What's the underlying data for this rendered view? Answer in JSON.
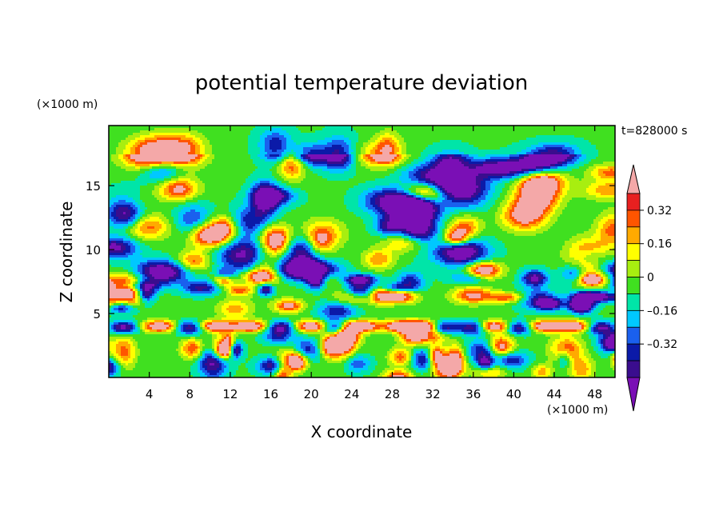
{
  "chart_data": {
    "type": "heatmap",
    "title": "potential temperature deviation",
    "xlabel": "X coordinate",
    "ylabel": "Z coordinate",
    "x_unit": "(×1000 m)",
    "y_unit": "(×1000 m)",
    "time_label": "t=828000 s",
    "xlim": [
      0,
      50
    ],
    "ylim": [
      0,
      19.7
    ],
    "x_ticks": [
      "4",
      "8",
      "12",
      "16",
      "20",
      "24",
      "28",
      "32",
      "36",
      "40",
      "44",
      "48"
    ],
    "y_ticks": [
      "5",
      "10",
      "15"
    ],
    "colorbar": {
      "levels": [
        -0.48,
        -0.4,
        -0.32,
        -0.24,
        -0.16,
        -0.08,
        0,
        0.08,
        0.16,
        0.24,
        0.32,
        0.4,
        0.48
      ],
      "colors": [
        "#7a0fb5",
        "#3a0d8e",
        "#0b1aa8",
        "#1a60ee",
        "#00c8ff",
        "#00e5a8",
        "#40e020",
        "#a8ee10",
        "#ffff00",
        "#ffaa00",
        "#ff5500",
        "#e82020",
        "#f4a8a8"
      ],
      "tick_labels": [
        "0.32",
        "0.16",
        "0",
        "–0.16",
        "–0.32"
      ],
      "tick_values": [
        0.32,
        0.16,
        0,
        -0.16,
        -0.32
      ]
    }
  }
}
